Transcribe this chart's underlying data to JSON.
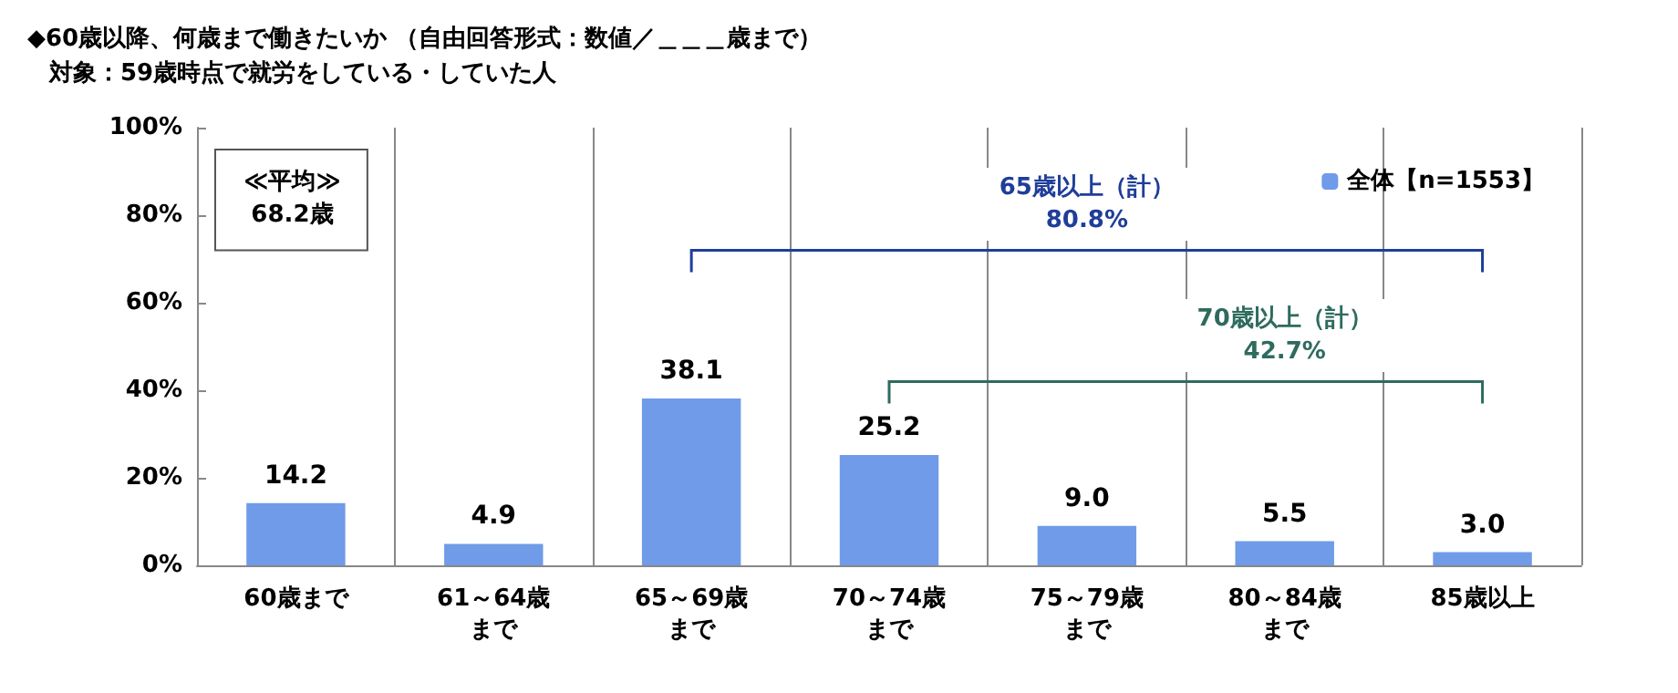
{
  "chart_data": {
    "type": "bar",
    "title": "◆60歳以降、何歳まで働きたいか （自由回答形式：数値／＿＿＿歳まで）",
    "subtitle": "対象：59歳時点で就労をしている・していた人",
    "categories": [
      "60歳まで",
      "61～64歳まで",
      "65～69歳まで",
      "70～74歳まで",
      "75～79歳まで",
      "80～84歳まで",
      "85歳以上"
    ],
    "series": [
      {
        "name": "全体【n=1553】",
        "color": "#6f9be8",
        "values": [
          14.2,
          4.9,
          38.1,
          25.2,
          9.0,
          5.5,
          3.0
        ],
        "value_labels": [
          "14.2",
          "4.9",
          "38.1",
          "25.2",
          "9.0",
          "5.5",
          "3.0"
        ]
      }
    ],
    "ylim": [
      0,
      100
    ],
    "yticks": [
      {
        "value": 0,
        "label": "0%"
      },
      {
        "value": 20,
        "label": "20%"
      },
      {
        "value": 40,
        "label": "40%"
      },
      {
        "value": 60,
        "label": "60%"
      },
      {
        "value": 80,
        "label": "80%"
      },
      {
        "value": 100,
        "label": "100%"
      }
    ],
    "grid": "x",
    "legend": "top right",
    "annotations": [
      "≪平均≫\n68.2歳",
      "65歳以上（計）\n80.8%",
      "70歳以上（計）\n42.7%"
    ]
  }
}
